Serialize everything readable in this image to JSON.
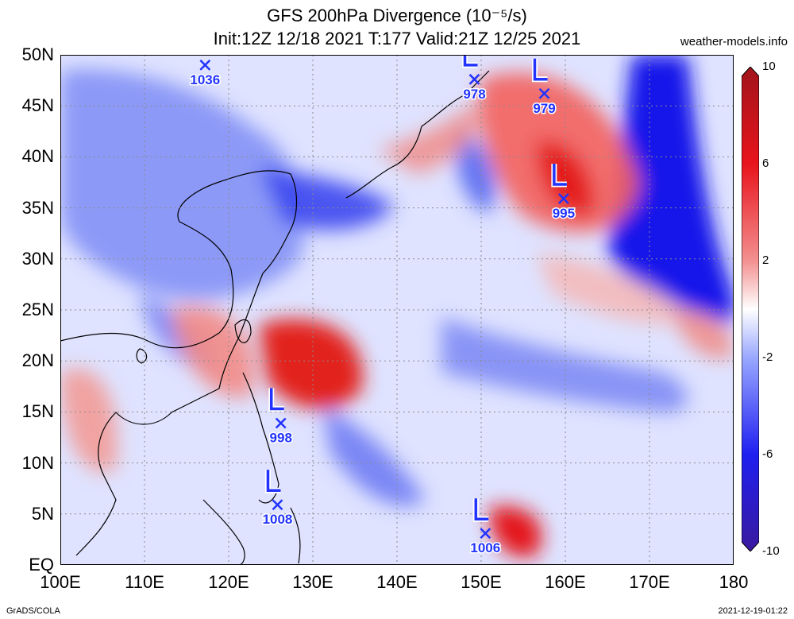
{
  "header": {
    "title_line1": "GFS 200hPa Divergence (10⁻⁵/s)",
    "title_line2": "Init:12Z 12/18 2021 T:177 Valid:21Z 12/25 2021",
    "site": "weather-models.info"
  },
  "axes": {
    "lat_labels": [
      "50N",
      "45N",
      "40N",
      "35N",
      "30N",
      "25N",
      "20N",
      "15N",
      "10N",
      "5N",
      "EQ"
    ],
    "lon_labels": [
      "100E",
      "110E",
      "120E",
      "130E",
      "140E",
      "150E",
      "160E",
      "170E",
      "180"
    ]
  },
  "colorbar": {
    "ticks": [
      "10",
      "6",
      "2",
      "-2",
      "-6",
      "-10"
    ],
    "colors": [
      "#a1141c",
      "#e8141c",
      "#f39090",
      "#ffffff",
      "#9aa8ff",
      "#1f1ff0",
      "#3a1a9e"
    ]
  },
  "lows": [
    {
      "pressure": "1036",
      "lon": 117.2,
      "lat": 49.0
    },
    {
      "pressure": "978",
      "lon": 149.2,
      "lat": 47.6
    },
    {
      "pressure": "979",
      "lon": 157.5,
      "lat": 46.2
    },
    {
      "pressure": "995",
      "lon": 159.8,
      "lat": 35.9
    },
    {
      "pressure": "998",
      "lon": 126.2,
      "lat": 13.9
    },
    {
      "pressure": "1008",
      "lon": 125.8,
      "lat": 5.9
    },
    {
      "pressure": "1006",
      "lon": 150.5,
      "lat": 3.1
    }
  ],
  "footer": {
    "credit": "GrADS/COLA",
    "timestamp": "2021-12-19-01:22"
  }
}
